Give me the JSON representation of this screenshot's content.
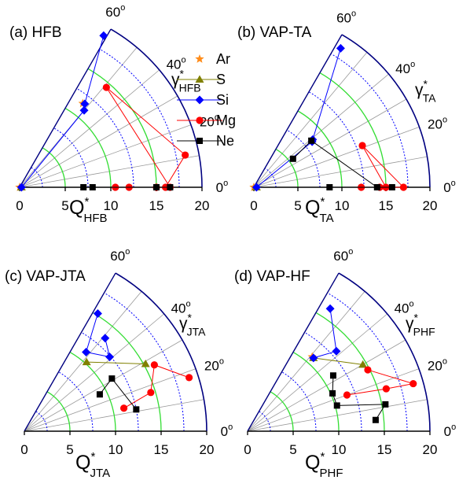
{
  "colors": {
    "axis": "#000000",
    "outer_arc": "#000080",
    "arc_blue": "#0000ff",
    "arc_green": "#33dd33",
    "radial": "#999999",
    "Ar": "#ff8c1a",
    "S": "#808000",
    "Si": "#0000ff",
    "Mg": "#ff0000",
    "Ne": "#000000"
  },
  "legend": [
    {
      "name": "Ar",
      "marker": "star",
      "line": false
    },
    {
      "name": "S",
      "marker": "triangle",
      "line": true
    },
    {
      "name": "Si",
      "marker": "diamond",
      "line": true
    },
    {
      "name": "Mg",
      "marker": "circle",
      "line": true
    },
    {
      "name": "Ne",
      "marker": "square",
      "line": true
    }
  ],
  "chart_data": [
    {
      "type": "scatter",
      "polar": true,
      "panel_label": "(a) HFB",
      "q_label": {
        "base": "Q",
        "sup": "*",
        "sub": "HFB"
      },
      "gamma_label": {
        "base": "γ",
        "sup": "*",
        "sub": "HFB"
      },
      "q_ticks": [
        "0",
        "5",
        "10",
        "15",
        "20"
      ],
      "angle_ticks": [
        "0",
        "20",
        "40",
        "60"
      ],
      "angle_unit": "o",
      "rlim": [
        0,
        20
      ],
      "thetalim_deg": [
        0,
        60
      ],
      "series": [
        {
          "name": "Ar",
          "points": [
            [
              0.0,
              0
            ],
            [
              11.5,
              53
            ]
          ]
        },
        {
          "name": "S",
          "points": [
            [
              0.2,
              0
            ]
          ]
        },
        {
          "name": "Si",
          "points": [
            [
              0.2,
              0
            ],
            [
              11.0,
              50
            ],
            [
              11.6,
              52
            ],
            [
              19.0,
              61
            ]
          ]
        },
        {
          "name": "Mg",
          "points": [
            [
              10.5,
              0
            ],
            [
              12.0,
              0
            ],
            [
              15.0,
              0
            ],
            [
              16.5,
              0
            ],
            [
              14.5,
              49
            ],
            [
              18.5,
              11
            ],
            [
              16.0,
              0
            ]
          ]
        },
        {
          "name": "Ne",
          "points": [
            [
              7.0,
              0
            ],
            [
              8.0,
              0
            ],
            [
              15.0,
              0
            ],
            [
              16.5,
              0
            ]
          ]
        }
      ]
    },
    {
      "type": "scatter",
      "polar": true,
      "panel_label": "(b) VAP-TA",
      "q_label": {
        "base": "Q",
        "sup": "*",
        "sub": "TA"
      },
      "gamma_label": {
        "base": "γ",
        "sup": "*",
        "sub": "TA"
      },
      "q_ticks": [
        "0",
        "5",
        "10",
        "15",
        "20"
      ],
      "angle_ticks": [
        "0",
        "20",
        "40",
        "60"
      ],
      "angle_unit": "o",
      "rlim": [
        0,
        20
      ],
      "thetalim_deg": [
        0,
        60
      ],
      "series": [
        {
          "name": "Ar",
          "points": [
            [
              0.0,
              0
            ]
          ]
        },
        {
          "name": "S",
          "points": [
            [
              0.3,
              0
            ]
          ]
        },
        {
          "name": "Si",
          "points": [
            [
              0.3,
              0
            ],
            [
              8.4,
              38
            ],
            [
              8.6,
              39
            ],
            [
              18.6,
              58
            ]
          ]
        },
        {
          "name": "Mg",
          "points": [
            [
              12.2,
              0
            ],
            [
              14.3,
              0
            ],
            [
              17.0,
              0
            ],
            [
              13.2,
              21
            ],
            [
              15.0,
              0
            ]
          ]
        },
        {
          "name": "Ne",
          "points": [
            [
              8.6,
              0
            ],
            [
              15.7,
              0
            ],
            [
              14.0,
              0
            ],
            [
              8.4,
              39
            ],
            [
              5.5,
              36
            ]
          ]
        }
      ]
    },
    {
      "type": "scatter",
      "polar": true,
      "panel_label": "(c) VAP-JTA",
      "q_label": {
        "base": "Q",
        "sup": "*",
        "sub": "JTA"
      },
      "gamma_label": {
        "base": "γ",
        "sup": "*",
        "sub": "JTA"
      },
      "q_ticks": [
        "0",
        "5",
        "10",
        "15",
        "20"
      ],
      "angle_ticks": [
        "0",
        "20",
        "40",
        "60"
      ],
      "angle_unit": "o",
      "rlim": [
        0,
        20
      ],
      "thetalim_deg": [
        0,
        60
      ],
      "series": [
        {
          "name": "Si",
          "points": [
            [
              13.5,
              49
            ],
            [
              12.4,
              41
            ],
            [
              11.0,
              52
            ],
            [
              15.2,
              58
            ]
          ]
        },
        {
          "name": "S",
          "points": [
            [
              10.2,
              48
            ],
            [
              15.2,
              29
            ]
          ]
        },
        {
          "name": "Mg",
          "points": [
            [
              19.0,
              18
            ],
            [
              16.0,
              27
            ],
            [
              14.5,
              17
            ],
            [
              11.2,
              13
            ]
          ]
        },
        {
          "name": "Ne",
          "points": [
            [
              9.2,
              26
            ],
            [
              11.2,
              31
            ],
            [
              12.5,
              11
            ]
          ]
        }
      ]
    },
    {
      "type": "scatter",
      "polar": true,
      "panel_label": "(d) VAP-HF",
      "q_label": {
        "base": "Q",
        "sup": "*",
        "sub": "PHF"
      },
      "gamma_label": {
        "base": "γ",
        "sup": "*",
        "sub": "PHF"
      },
      "q_ticks": [
        "0",
        "5",
        "10",
        "15",
        "20"
      ],
      "angle_ticks": [
        "0",
        "20",
        "40",
        "60"
      ],
      "angle_unit": "o",
      "rlim": [
        0,
        20
      ],
      "thetalim_deg": [
        0,
        60
      ],
      "series": [
        {
          "name": "Ar",
          "points": [
            [
              10.8,
              49
            ]
          ]
        },
        {
          "name": "S",
          "points": [
            [
              10.8,
              48
            ],
            [
              14.6,
              30
            ]
          ]
        },
        {
          "name": "Si",
          "points": [
            [
              10.8,
              48
            ],
            [
              13.1,
              42
            ],
            [
              16.2,
              56
            ]
          ]
        },
        {
          "name": "Mg",
          "points": [
            [
              14.8,
              27
            ],
            [
              18.9,
              16
            ],
            [
              15.9,
              17
            ],
            [
              11.6,
              20
            ]
          ]
        },
        {
          "name": "Ne",
          "points": [
            [
              11.2,
              33
            ],
            [
              10.2,
              24
            ],
            [
              10.2,
              16
            ],
            [
              15.4,
              11
            ],
            [
              14.1,
              5
            ]
          ]
        }
      ]
    }
  ]
}
